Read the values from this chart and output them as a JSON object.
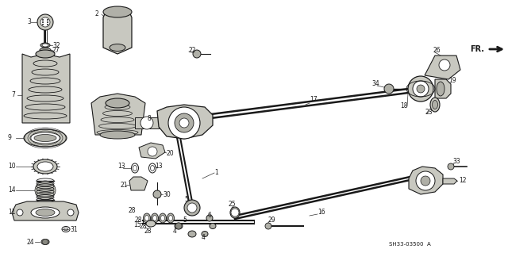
{
  "bg_color": "#ffffff",
  "line_color": "#1a1a1a",
  "part_code": "SH33-03500  A",
  "fig_width": 6.4,
  "fig_height": 3.19,
  "dpi": 100
}
